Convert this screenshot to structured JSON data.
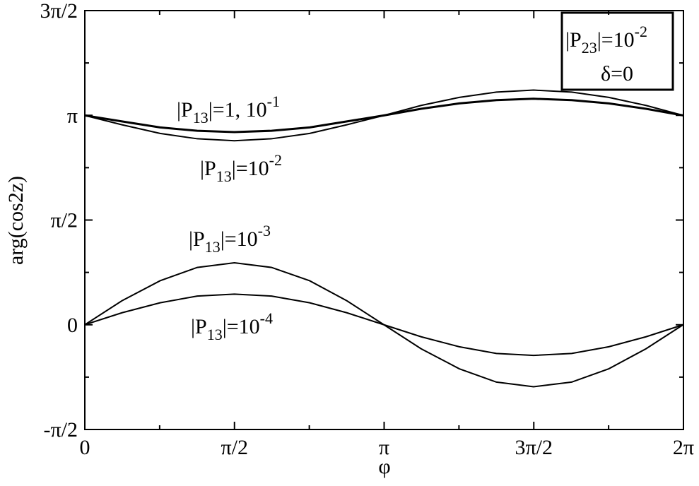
{
  "chart_data": {
    "type": "line",
    "xlabel": "φ",
    "ylabel": "arg(cos2z)",
    "x": [
      0,
      0.39,
      0.79,
      1.18,
      1.57,
      1.96,
      2.36,
      2.75,
      3.14,
      3.53,
      3.93,
      4.32,
      4.71,
      5.11,
      5.5,
      5.89,
      6.28
    ],
    "series": [
      {
        "color": "#000000",
        "width": 3,
        "values": [
          3.14,
          3.05,
          2.96,
          2.91,
          2.89,
          2.91,
          2.96,
          3.05,
          3.14,
          3.24,
          3.32,
          3.37,
          3.39,
          3.37,
          3.32,
          3.24,
          3.14
        ]
      },
      {
        "color": "#000000",
        "width": 2,
        "values": [
          3.14,
          3.0,
          2.87,
          2.79,
          2.76,
          2.79,
          2.87,
          3.0,
          3.14,
          3.29,
          3.41,
          3.49,
          3.52,
          3.49,
          3.41,
          3.29,
          3.14
        ]
      },
      {
        "color": "#000000",
        "width": 2,
        "values": [
          0,
          0.36,
          0.66,
          0.86,
          0.93,
          0.86,
          0.66,
          0.36,
          0,
          -0.36,
          -0.66,
          -0.86,
          -0.93,
          -0.86,
          -0.66,
          -0.36,
          0
        ]
      },
      {
        "color": "#000000",
        "width": 2,
        "values": [
          0,
          0.18,
          0.33,
          0.43,
          0.46,
          0.43,
          0.33,
          0.18,
          0,
          -0.18,
          -0.33,
          -0.43,
          -0.46,
          -0.43,
          -0.33,
          -0.18,
          0
        ]
      }
    ],
    "xlim": [
      0,
      6.2832
    ],
    "ylim": [
      -1.5708,
      4.7124
    ],
    "xticks": [
      0,
      {
        "value": 1.5708,
        "label": "π/2"
      },
      {
        "value": 3.1416,
        "label": "π"
      },
      {
        "value": 4.7124,
        "label": "3π/2"
      },
      {
        "value": 6.2832,
        "label": "2π"
      }
    ],
    "yticks": [
      {
        "value": -1.5708,
        "label": "-π/2"
      },
      0,
      {
        "value": 1.5708,
        "label": "π/2"
      },
      {
        "value": 3.1416,
        "label": "π"
      },
      {
        "value": 4.7124,
        "label": "3π/2"
      }
    ],
    "xminorticks": [
      0.7854,
      2.3562,
      3.927,
      5.4978
    ],
    "yminorticks": [
      -0.7854,
      0.7854,
      2.3562,
      3.927
    ],
    "annotations": [
      {
        "parts": [
          {
            "text": "|P"
          },
          {
            "text": "13",
            "shift": "sub"
          },
          {
            "text": "|=1, 10"
          },
          {
            "text": "-1",
            "shift": "sup"
          }
        ]
      },
      {
        "parts": [
          {
            "text": "|P"
          },
          {
            "text": "13",
            "shift": "sub"
          },
          {
            "text": "|=10"
          },
          {
            "text": "-2",
            "shift": "sup"
          }
        ]
      },
      {
        "parts": [
          {
            "text": "|P"
          },
          {
            "text": "13",
            "shift": "sub"
          },
          {
            "text": "|=10"
          },
          {
            "text": "-3",
            "shift": "sup"
          }
        ]
      },
      {
        "parts": [
          {
            "text": "|P"
          },
          {
            "text": "13",
            "shift": "sub"
          },
          {
            "text": "|=10"
          },
          {
            "text": "-4",
            "shift": "sup"
          }
        ]
      },
      {
        "parts": [
          {
            "text": "|P"
          },
          {
            "text": "23",
            "shift": "sub"
          },
          {
            "text": "|=10"
          },
          {
            "text": "-2",
            "shift": "sup"
          }
        ]
      },
      {
        "parts": [
          {
            "text": "δ=0"
          }
        ]
      }
    ]
  }
}
